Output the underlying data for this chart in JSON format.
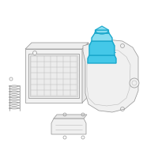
{
  "bg_color": "#ffffff",
  "line_color": "#999999",
  "line_color2": "#bbbbbb",
  "highlight_stroke": "#1aa8cc",
  "highlight_fill": "#44c8e8",
  "highlight_fill2": "#88ddf0",
  "fig_size": [
    2.0,
    2.0
  ],
  "dpi": 100
}
